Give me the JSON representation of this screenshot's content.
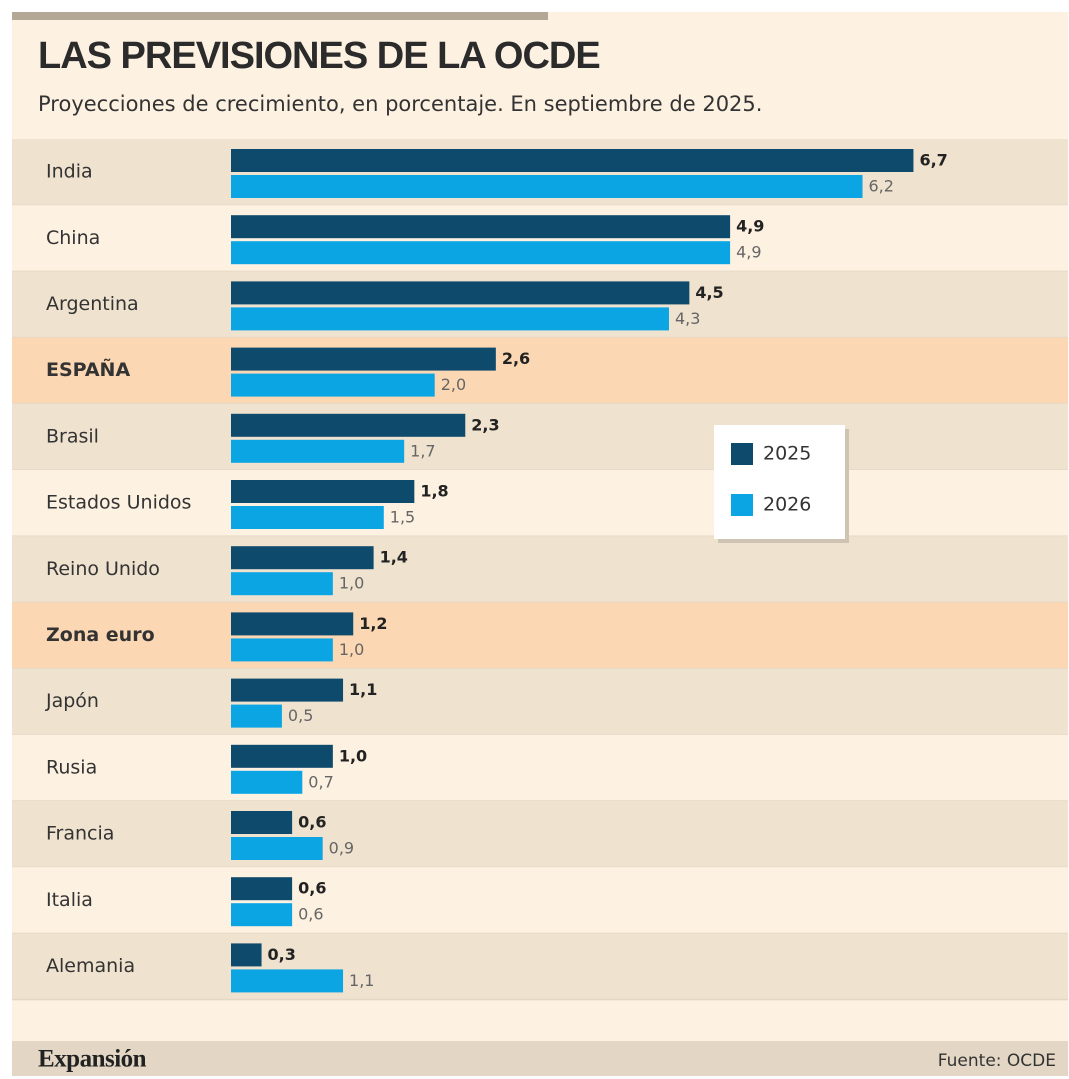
{
  "chart_data": {
    "type": "bar",
    "orientation": "horizontal",
    "title": "LAS PREVISIONES DE LA OCDE",
    "subtitle": "Proyecciones de crecimiento, en porcentaje. En septiembre de 2025.",
    "categories": [
      "India",
      "China",
      "Argentina",
      "ESPAÑA",
      "Brasil",
      "Estados Unidos",
      "Reino Unido",
      "Zona euro",
      "Japón",
      "Rusia",
      "Francia",
      "Italia",
      "Alemania"
    ],
    "highlight": [
      3,
      7
    ],
    "series": [
      {
        "name": "2025",
        "color": "#0e4a6c",
        "values": [
          6.7,
          4.9,
          4.5,
          2.6,
          2.3,
          1.8,
          1.4,
          1.2,
          1.1,
          1.0,
          0.6,
          0.6,
          0.3
        ],
        "value_labels": [
          "6,7",
          "4,9",
          "4,5",
          "2,6",
          "2,3",
          "1,8",
          "1,4",
          "1,2",
          "1,1",
          "1,0",
          "0,6",
          "0,6",
          "0,3"
        ]
      },
      {
        "name": "2026",
        "color": "#0ba5e3",
        "values": [
          6.2,
          4.9,
          4.3,
          2.0,
          1.7,
          1.5,
          1.0,
          1.0,
          0.5,
          0.7,
          0.9,
          0.6,
          1.1
        ],
        "value_labels": [
          "6,2",
          "4,9",
          "4,3",
          "2,0",
          "1,7",
          "1,5",
          "1,0",
          "1,0",
          "0,5",
          "0,7",
          "0,9",
          "0,6",
          "1,1"
        ]
      }
    ],
    "xlim": [
      0,
      7
    ],
    "source": "Fuente: OCDE",
    "brand": "Expansión"
  }
}
